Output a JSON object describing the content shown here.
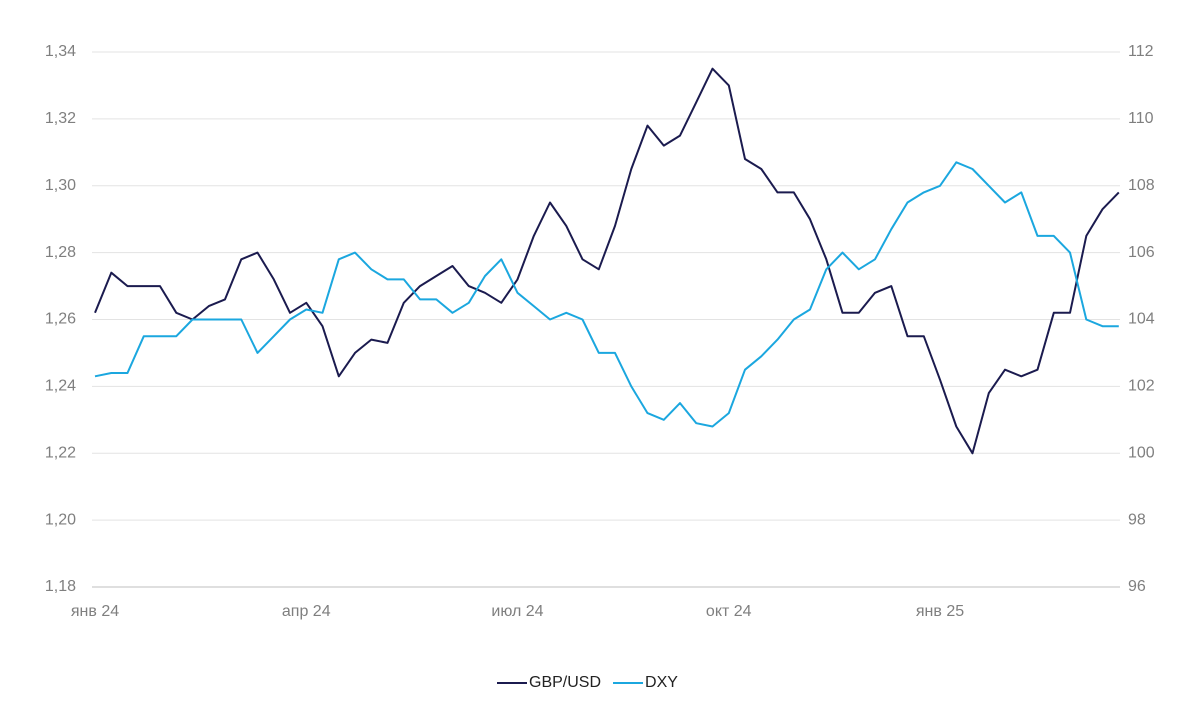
{
  "chart_data": {
    "type": "line",
    "categories": [
      "янв 24",
      null,
      null,
      null,
      null,
      null,
      null,
      null,
      null,
      null,
      null,
      null,
      null,
      "апр 24",
      null,
      null,
      null,
      null,
      null,
      null,
      null,
      null,
      null,
      null,
      null,
      null,
      "июл 24",
      null,
      null,
      null,
      null,
      null,
      null,
      null,
      null,
      null,
      null,
      null,
      null,
      "окт 24",
      null,
      null,
      null,
      null,
      null,
      null,
      null,
      null,
      null,
      null,
      null,
      null,
      "янв 25",
      null,
      null,
      null,
      null,
      null,
      null,
      null,
      null,
      null,
      null,
      null
    ],
    "series": [
      {
        "name": "GBP/USD",
        "color": "#1b1b4f",
        "axis": "y",
        "values": [
          1.262,
          1.274,
          1.27,
          1.27,
          1.27,
          1.262,
          1.26,
          1.264,
          1.266,
          1.278,
          1.28,
          1.272,
          1.262,
          1.265,
          1.258,
          1.243,
          1.25,
          1.254,
          1.253,
          1.265,
          1.27,
          1.273,
          1.276,
          1.27,
          1.268,
          1.265,
          1.272,
          1.285,
          1.295,
          1.288,
          1.278,
          1.275,
          1.288,
          1.305,
          1.318,
          1.312,
          1.315,
          1.325,
          1.335,
          1.33,
          1.308,
          1.305,
          1.298,
          1.298,
          1.29,
          1.278,
          1.262,
          1.262,
          1.268,
          1.27,
          1.255,
          1.255,
          1.242,
          1.228,
          1.22,
          1.238,
          1.245,
          1.243,
          1.245,
          1.262,
          1.262,
          1.285,
          1.293,
          1.298
        ]
      },
      {
        "name": "DXY",
        "color": "#1ba7df",
        "axis": "y2",
        "values": [
          102.3,
          102.4,
          102.4,
          103.5,
          103.5,
          103.5,
          104.0,
          104.0,
          104.0,
          104.0,
          103.0,
          103.5,
          104.0,
          104.3,
          104.2,
          105.8,
          106.0,
          105.5,
          105.2,
          105.2,
          104.6,
          104.6,
          104.2,
          104.5,
          105.3,
          105.8,
          104.8,
          104.4,
          104.0,
          104.2,
          104.0,
          103.0,
          103.0,
          102.0,
          101.2,
          101.0,
          101.5,
          100.9,
          100.8,
          101.2,
          102.5,
          102.9,
          103.4,
          104.0,
          104.3,
          105.5,
          106.0,
          105.5,
          105.8,
          106.7,
          107.5,
          107.8,
          108.0,
          108.7,
          108.5,
          108.0,
          107.5,
          107.8,
          106.5,
          106.5,
          106.0,
          104.0,
          103.8,
          103.8
        ]
      }
    ],
    "ylim": [
      1.18,
      1.34
    ],
    "yticks": [
      {
        "value": 1.18,
        "label": "1,18"
      },
      {
        "value": 1.2,
        "label": "1,20"
      },
      {
        "value": 1.22,
        "label": "1,22"
      },
      {
        "value": 1.24,
        "label": "1,24"
      },
      {
        "value": 1.26,
        "label": "1,26"
      },
      {
        "value": 1.28,
        "label": "1,28"
      },
      {
        "value": 1.3,
        "label": "1,30"
      },
      {
        "value": 1.32,
        "label": "1,32"
      },
      {
        "value": 1.34,
        "label": "1,34"
      }
    ],
    "y2lim": [
      96,
      112
    ],
    "y2ticks": [
      96,
      98,
      100,
      102,
      104,
      106,
      108,
      110,
      112
    ],
    "grid": true,
    "legend": "bottom"
  }
}
